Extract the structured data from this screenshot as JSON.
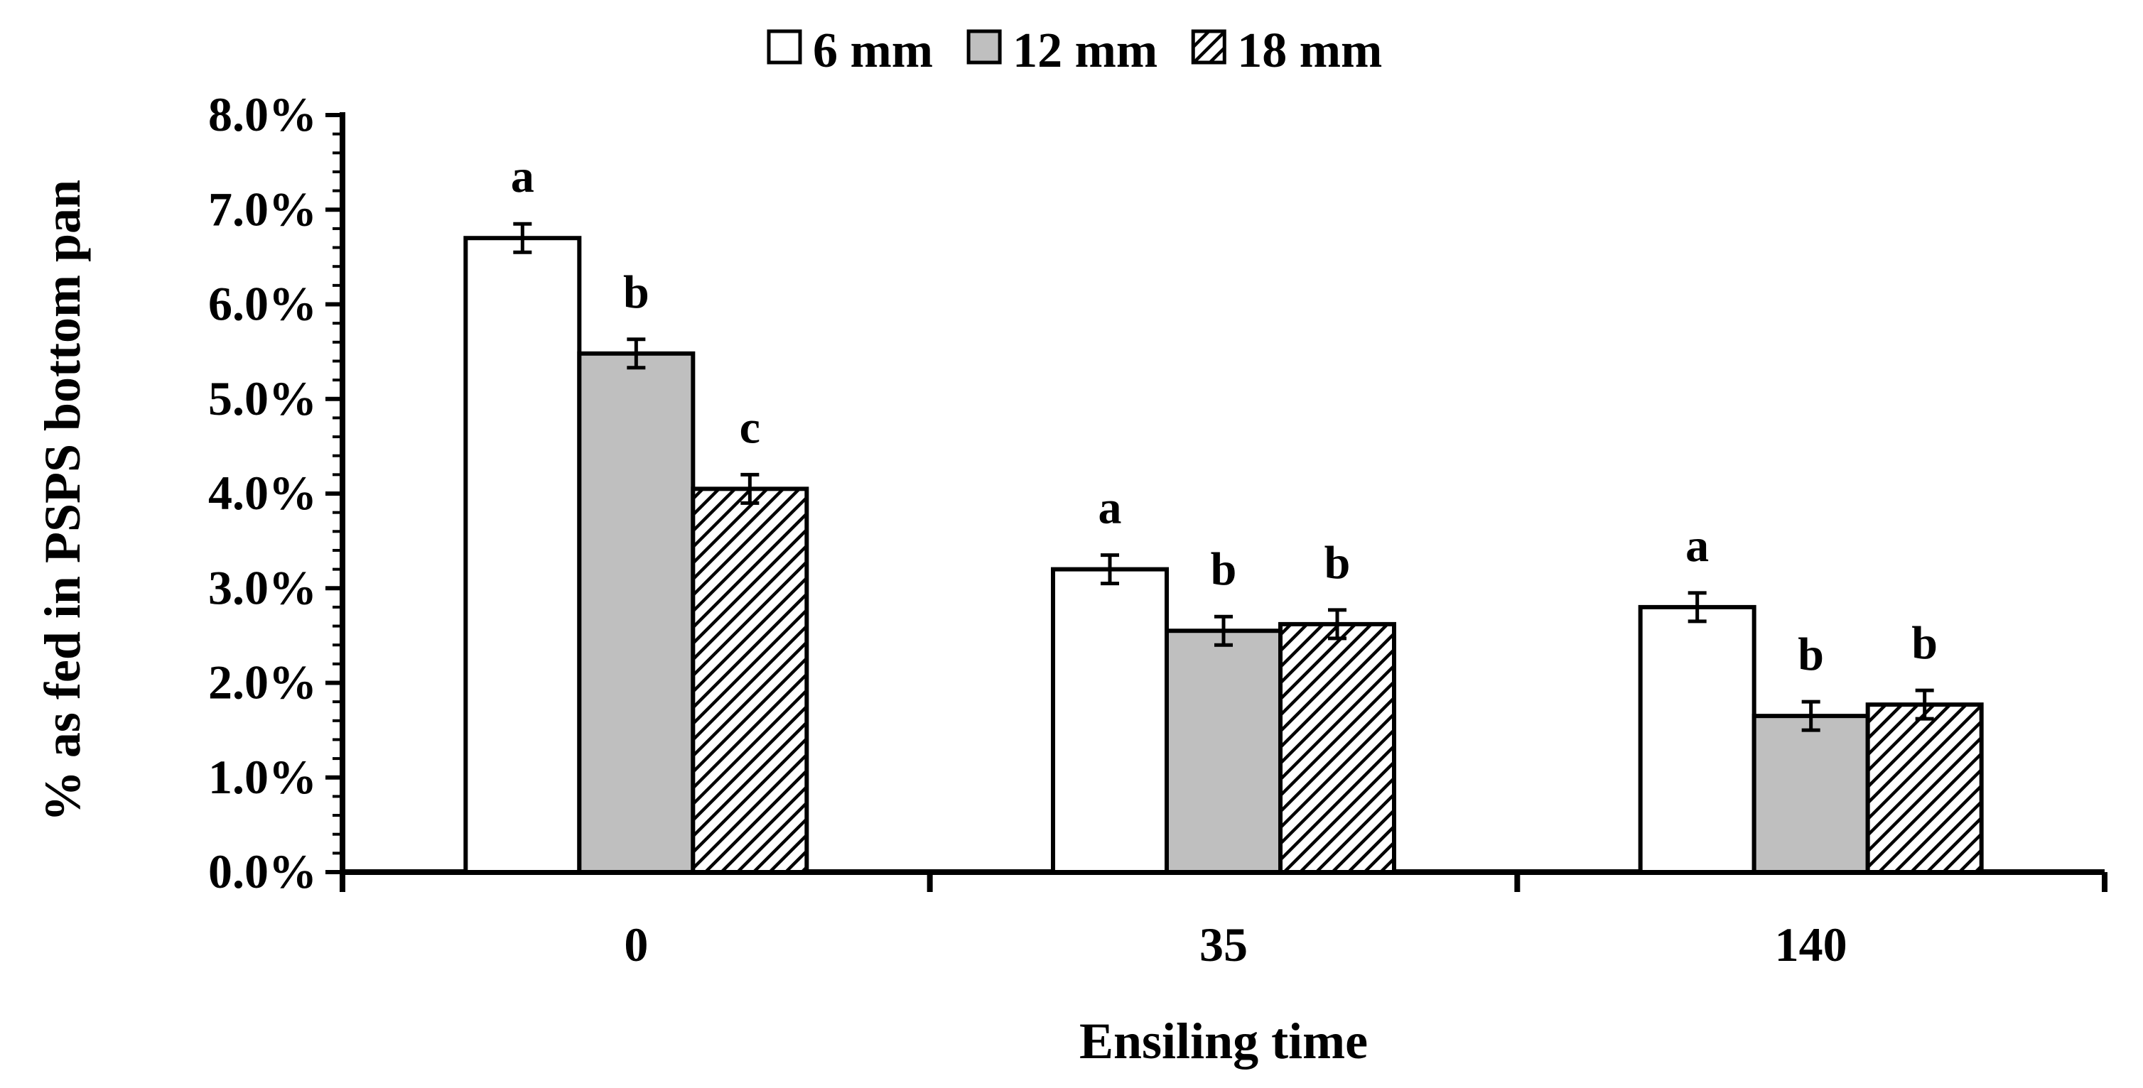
{
  "chart_data": {
    "type": "bar",
    "title": "",
    "xlabel": "Ensiling time",
    "ylabel": "% as fed in PSPS bottom pan",
    "categories": [
      "0",
      "35",
      "140"
    ],
    "ylim": [
      0,
      8
    ],
    "y_ticks": [
      "0.0%",
      "1.0%",
      "2.0%",
      "3.0%",
      "4.0%",
      "5.0%",
      "6.0%",
      "7.0%",
      "8.0%"
    ],
    "legend_position": "top-center",
    "series": [
      {
        "name": "6 mm",
        "pattern": "white",
        "values": [
          6.7,
          3.2,
          2.8
        ],
        "errors": [
          0.15,
          0.15,
          0.15
        ],
        "labels": [
          "a",
          "a",
          "a"
        ]
      },
      {
        "name": "12 mm",
        "pattern": "gray",
        "values": [
          5.48,
          2.55,
          1.65
        ],
        "errors": [
          0.15,
          0.15,
          0.15
        ],
        "labels": [
          "b",
          "b",
          "b"
        ]
      },
      {
        "name": "18 mm",
        "pattern": "hatch",
        "values": [
          4.05,
          2.62,
          1.77
        ],
        "errors": [
          0.15,
          0.15,
          0.15
        ],
        "labels": [
          "c",
          "b",
          "b"
        ]
      }
    ]
  },
  "colors": {
    "white_fill": "#ffffff",
    "gray_fill": "#bfbfbf",
    "hatch_line": "#000000",
    "axis": "#000000"
  }
}
